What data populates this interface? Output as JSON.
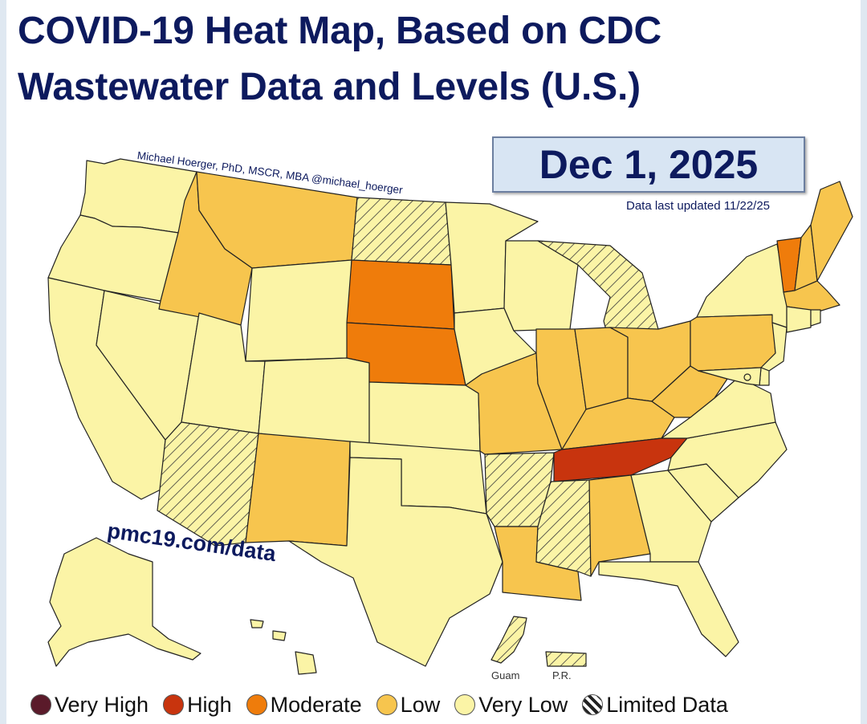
{
  "title_line1": "COVID-19 Heat Map, Based on CDC",
  "title_line2": "Wastewater Data and Levels (U.S.)",
  "date": "Dec 1, 2025",
  "updated": "Data last updated 11/22/25",
  "credit": "Michael Hoerger, PhD, MSCR, MBA  @michael_hoerger",
  "website": "pmc19.com/data",
  "territories": {
    "guam": "Guam",
    "pr": "P.R."
  },
  "colors": {
    "very_high": "#5a1a2a",
    "high": "#c8340e",
    "moderate": "#ef7c0b",
    "low": "#f7c54e",
    "very_low": "#fbf4a6",
    "limited": "#fbf4a6"
  },
  "legend": [
    {
      "label": "Very High",
      "color": "#5a1a2a",
      "icon": "solid-dot"
    },
    {
      "label": "High",
      "color": "#c8340e",
      "icon": "solid-dot"
    },
    {
      "label": "Moderate",
      "color": "#ef7c0b",
      "icon": "solid-dot"
    },
    {
      "label": "Low",
      "color": "#f7c54e",
      "icon": "solid-dot"
    },
    {
      "label": "Very Low",
      "color": "#fbf4a6",
      "icon": "solid-dot"
    },
    {
      "label": "Limited Data",
      "color": "#ffffff",
      "icon": "hatched-dot"
    }
  ],
  "states": {
    "WA": "very_low",
    "OR": "very_low",
    "CA": "very_low",
    "NV": "very_low",
    "ID": "low",
    "MT": "low",
    "WY": "very_low",
    "UT": "very_low",
    "AZ": "limited",
    "CO": "very_low",
    "NM": "low",
    "ND": "limited",
    "SD": "moderate",
    "NE": "moderate",
    "KS": "very_low",
    "OK": "very_low",
    "TX": "very_low",
    "MN": "very_low",
    "IA": "very_low",
    "MO": "low",
    "AR": "limited",
    "LA": "low",
    "WI": "very_low",
    "IL": "low",
    "MI": "limited",
    "IN": "low",
    "OH": "low",
    "KY": "low",
    "TN": "high",
    "MS": "limited",
    "AL": "low",
    "GA": "very_low",
    "FL": "very_low",
    "SC": "very_low",
    "NC": "very_low",
    "VA": "very_low",
    "WV": "low",
    "PA": "low",
    "NY": "very_low",
    "VT": "moderate",
    "NH": "low",
    "ME": "low",
    "MA": "low",
    "CT": "very_low",
    "RI": "very_low",
    "NJ": "very_low",
    "DE": "very_low",
    "MD": "very_low",
    "DC": "very_low",
    "AK": "very_low",
    "HI": "very_low",
    "GU": "limited",
    "PR": "limited"
  }
}
